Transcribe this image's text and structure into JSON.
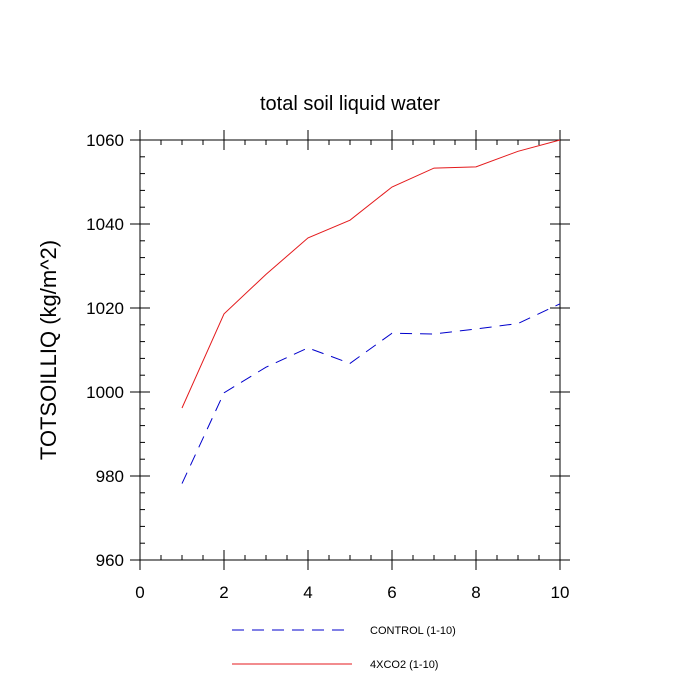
{
  "chart_data": {
    "type": "line",
    "title": "total soil liquid water",
    "xlabel": "",
    "ylabel": "TOTSOILLIQ  (kg/m^2)",
    "xlim": [
      0,
      10
    ],
    "ylim": [
      960,
      1060
    ],
    "xticks": [
      0,
      2,
      4,
      6,
      8,
      10
    ],
    "yticks": [
      960,
      980,
      1000,
      1020,
      1040,
      1060
    ],
    "x": [
      1,
      2,
      3,
      4,
      5,
      6,
      7,
      8,
      9,
      10
    ],
    "series": [
      {
        "name": "CONTROL (1-10)",
        "color": "#0000cc",
        "dashed": true,
        "values": [
          978.2,
          999.8,
          1005.9,
          1010.5,
          1006.8,
          1014.0,
          1013.8,
          1015.0,
          1016.3,
          1021.0
        ]
      },
      {
        "name": "4XCO2 (1-10)",
        "color": "#e41a1c",
        "dashed": false,
        "values": [
          996.2,
          1018.6,
          1028.0,
          1036.7,
          1040.9,
          1048.8,
          1053.3,
          1053.6,
          1057.3,
          1060.0
        ]
      }
    ],
    "legend_position": "bottom"
  }
}
